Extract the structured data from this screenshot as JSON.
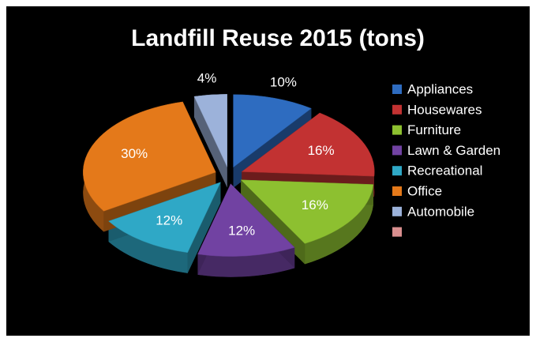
{
  "chart_data": {
    "type": "pie",
    "title": "Landfill Reuse 2015 (tons)",
    "categories": [
      "Appliances",
      "Housewares",
      "Furniture",
      "Lawn & Garden",
      "Recreational",
      "Office",
      "Automobile",
      null
    ],
    "values": [
      10,
      16,
      16,
      12,
      12,
      30,
      4,
      null
    ],
    "value_labels": [
      "10%",
      "16%",
      "16%",
      "12%",
      "12%",
      "30%",
      "4%",
      null
    ],
    "colors": [
      "#2e6cc0",
      "#c23232",
      "#8dc030",
      "#7142a2",
      "#2fa8c6",
      "#e4791a",
      "#9cb2da",
      "#d98f8f"
    ],
    "legend": "right"
  }
}
